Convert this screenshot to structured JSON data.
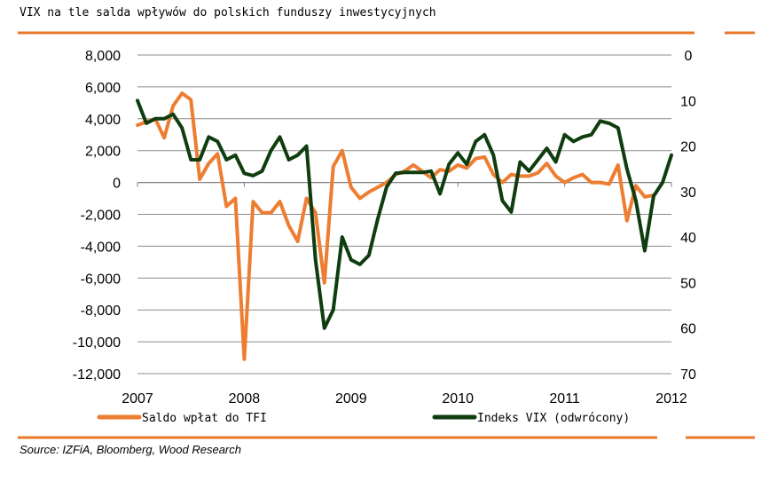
{
  "title": "VIX na tle salda wpływów do polskich funduszy inwestycyjnych",
  "source": "Source: IZFiA, Bloomberg, Wood Research",
  "colors": {
    "accent": "#e8782a",
    "saldo": "#ed7d31",
    "vix": "#0f3d0f",
    "grid": "#8c8c8c",
    "axis": "#808080"
  },
  "chart_data": {
    "type": "line",
    "x_ticks": [
      "2007",
      "2008",
      "2009",
      "2010",
      "2011",
      "2012"
    ],
    "xlim": [
      2007,
      2012
    ],
    "y_left": {
      "ticks": [
        "8,000",
        "6,000",
        "4,000",
        "2,000",
        "0",
        "-2,000",
        "-4,000",
        "-6,000",
        "-8,000",
        "-10,000",
        "-12,000"
      ],
      "range": [
        -12000,
        8000
      ]
    },
    "y_right": {
      "ticks": [
        "0",
        "10",
        "20",
        "30",
        "40",
        "50",
        "60",
        "70"
      ],
      "range": [
        0,
        70
      ],
      "inverted": true
    },
    "grid": true,
    "legend_position": "bottom",
    "series": [
      {
        "name": "Saldo wpłat do TFI",
        "axis": "left",
        "color": "#ed7d31",
        "x": [
          2007.0,
          2007.083,
          2007.167,
          2007.25,
          2007.333,
          2007.417,
          2007.5,
          2007.583,
          2007.667,
          2007.75,
          2007.833,
          2007.917,
          2008.0,
          2008.083,
          2008.167,
          2008.25,
          2008.333,
          2008.417,
          2008.5,
          2008.583,
          2008.667,
          2008.75,
          2008.833,
          2008.917,
          2009.0,
          2009.083,
          2009.167,
          2009.25,
          2009.333,
          2009.417,
          2009.5,
          2009.583,
          2009.667,
          2009.75,
          2009.833,
          2009.917,
          2010.0,
          2010.083,
          2010.167,
          2010.25,
          2010.333,
          2010.417,
          2010.5,
          2010.583,
          2010.667,
          2010.75,
          2010.833,
          2010.917,
          2011.0,
          2011.083,
          2011.167,
          2011.25,
          2011.333,
          2011.417,
          2011.5,
          2011.583,
          2011.667,
          2011.75,
          2011.833
        ],
        "y": [
          3600,
          3800,
          4000,
          2800,
          4800,
          5600,
          5200,
          200,
          1200,
          1800,
          -1500,
          -1000,
          -11100,
          -1200,
          -1900,
          -1900,
          -1200,
          -2700,
          -3700,
          -1000,
          -1900,
          -6300,
          1000,
          2000,
          -300,
          -1000,
          -600,
          -300,
          0,
          500,
          700,
          1100,
          700,
          300,
          800,
          700,
          1100,
          900,
          1500,
          1600,
          500,
          0,
          500,
          400,
          400,
          600,
          1200,
          400,
          0,
          300,
          500,
          0,
          0,
          -100,
          1100,
          -2400,
          -200,
          -900,
          -800
        ]
      },
      {
        "name": "Indeks VIX (odwrócony)",
        "axis": "right",
        "color": "#0f3d0f",
        "x": [
          2007.0,
          2007.083,
          2007.167,
          2007.25,
          2007.333,
          2007.417,
          2007.5,
          2007.583,
          2007.667,
          2007.75,
          2007.833,
          2007.917,
          2008.0,
          2008.083,
          2008.167,
          2008.25,
          2008.333,
          2008.417,
          2008.5,
          2008.583,
          2008.667,
          2008.75,
          2008.833,
          2008.917,
          2009.0,
          2009.083,
          2009.167,
          2009.25,
          2009.333,
          2009.417,
          2009.5,
          2009.583,
          2009.667,
          2009.75,
          2009.833,
          2009.917,
          2010.0,
          2010.083,
          2010.167,
          2010.25,
          2010.333,
          2010.417,
          2010.5,
          2010.583,
          2010.667,
          2010.75,
          2010.833,
          2010.917,
          2011.0,
          2011.083,
          2011.167,
          2011.25,
          2011.333,
          2011.417,
          2011.5,
          2011.583,
          2011.667,
          2011.75,
          2011.833,
          2011.917,
          2012.0
        ],
        "y": [
          10,
          15,
          14,
          14,
          13,
          16,
          23,
          23,
          18,
          19,
          23,
          22,
          26,
          26.5,
          25.5,
          21,
          18,
          23,
          22,
          20,
          45,
          60,
          56,
          40,
          45,
          46,
          44,
          36,
          29,
          26,
          25.8,
          25.8,
          25.8,
          25.5,
          30.5,
          24,
          21.5,
          24,
          19,
          17.5,
          22,
          32,
          34.5,
          23.5,
          25.5,
          23,
          20.5,
          23.5,
          17.5,
          19,
          18,
          17.5,
          14.5,
          15,
          16,
          25,
          32,
          43,
          31,
          28,
          22
        ]
      }
    ]
  }
}
